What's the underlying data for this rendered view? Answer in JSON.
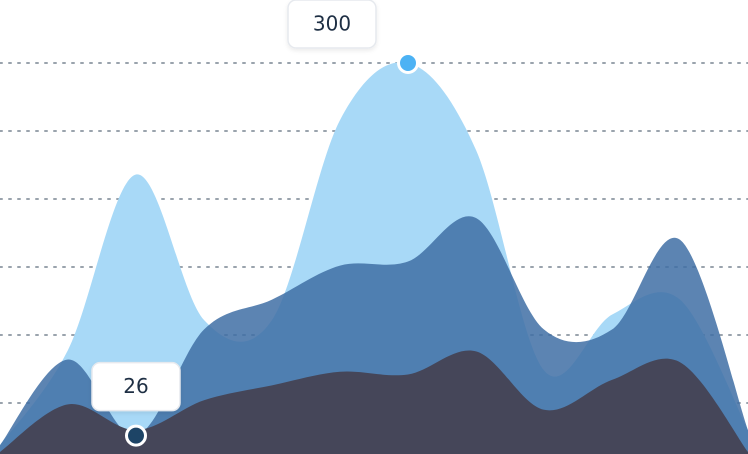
{
  "chart_data": {
    "type": "area",
    "categories": [
      null,
      null,
      null,
      null,
      null,
      null,
      null,
      null,
      null,
      null,
      null,
      null
    ],
    "series": [
      {
        "color": "#a8d9f7",
        "values": [
          19,
          89,
          218,
          111,
          111,
          258,
          300,
          236,
          74,
          115,
          126,
          30
        ]
      },
      {
        "color": "#3f6fa5",
        "values": [
          19,
          82,
          26,
          104,
          126,
          151,
          154,
          186,
          104,
          104,
          170,
          30
        ]
      },
      {
        "color": "#454659",
        "values": [
          14,
          49,
          30,
          52,
          63,
          73,
          71,
          88,
          45,
          67,
          80,
          14
        ]
      }
    ],
    "callouts": [
      {
        "series": 0,
        "index": 6,
        "dot_color": "#4cb2f4"
      },
      {
        "series": 1,
        "index": 2,
        "dot_color": "#1d4466"
      }
    ],
    "ylim": [
      0,
      350
    ],
    "yticks": [
      50,
      100,
      150,
      200,
      250,
      300
    ],
    "grid": true,
    "show_tick_labels": false
  }
}
